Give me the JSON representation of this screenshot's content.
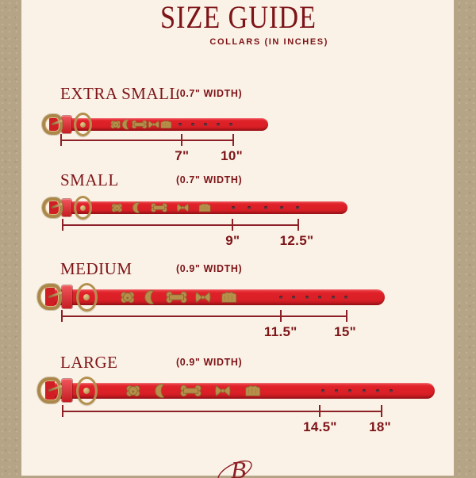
{
  "title": "SIZE GUIDE",
  "subtitle": "COLLARS (IN INCHES)",
  "logo_letter": "B",
  "colors": {
    "text_red": "#7d1418",
    "line_red": "#8d2026",
    "collar_red": "#dd2027",
    "collar_red_dark": "#ad171d",
    "gold": "#b68f4a",
    "card_background": "#faf2e6",
    "border_background": "#b6a487"
  },
  "charm_names": [
    "dog-head",
    "crescent-moon",
    "bone",
    "bow",
    "bear"
  ],
  "sizes": [
    {
      "name": "EXTRA SMALL",
      "width_label": "(0.7\" WIDTH)",
      "min_in": 7,
      "max_in": 10,
      "min_label": "7\"",
      "max_label": "10\"",
      "holes": 5
    },
    {
      "name": "SMALL",
      "width_label": "(0.7\" WIDTH)",
      "min_in": 9,
      "max_in": 12.5,
      "min_label": "9\"",
      "max_label": "12.5\"",
      "holes": 5
    },
    {
      "name": "MEDIUM",
      "width_label": "(0.9\" WIDTH)",
      "min_in": 11.5,
      "max_in": 15,
      "min_label": "11.5\"",
      "max_label": "15\"",
      "holes": 6
    },
    {
      "name": "LARGE",
      "width_label": "(0.9\" WIDTH)",
      "min_in": 14.5,
      "max_in": 18,
      "min_label": "14.5\"",
      "max_label": "18\"",
      "holes": 6
    }
  ]
}
